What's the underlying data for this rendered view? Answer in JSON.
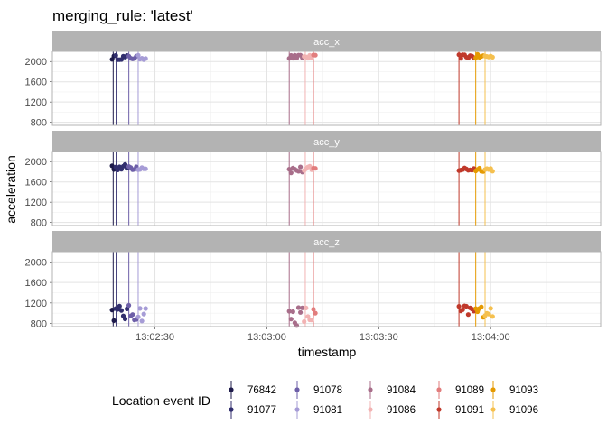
{
  "chart_data": {
    "type": "scatter",
    "title": "merging_rule: 'latest'",
    "xlabel": "timestamp",
    "ylabel": "acceleration",
    "x_ticks": [
      "13:02:30",
      "13:03:00",
      "13:03:30",
      "13:04:00"
    ],
    "x_tick_seconds": [
      30,
      60,
      90,
      120
    ],
    "xlim_seconds": [
      2.5,
      149.5
    ],
    "ylim": [
      740,
      2200
    ],
    "y_ticks": [
      800,
      1200,
      1600,
      2000
    ],
    "grid": true,
    "panels": [
      {
        "name": "acc_x",
        "clusters": [
          {
            "start": 18.5,
            "end": 27.5,
            "center": 2080,
            "spread": 45
          },
          {
            "start": 66.0,
            "end": 73.0,
            "center": 2090,
            "spread": 40
          },
          {
            "start": 111.5,
            "end": 120.5,
            "center": 2100,
            "spread": 40
          }
        ]
      },
      {
        "name": "acc_y",
        "clusters": [
          {
            "start": 18.5,
            "end": 27.5,
            "center": 1890,
            "spread": 60
          },
          {
            "start": 66.0,
            "end": 73.0,
            "center": 1840,
            "spread": 70
          },
          {
            "start": 111.5,
            "end": 120.5,
            "center": 1850,
            "spread": 45
          }
        ]
      },
      {
        "name": "acc_z",
        "clusters": [
          {
            "start": 18.5,
            "end": 27.5,
            "center": 1000,
            "spread": 160
          },
          {
            "start": 66.0,
            "end": 73.0,
            "center": 950,
            "spread": 200
          },
          {
            "start": 111.5,
            "end": 120.5,
            "center": 1040,
            "spread": 120
          }
        ]
      }
    ],
    "event_lines_seconds": [
      {
        "id": "76842",
        "t": 18.8
      },
      {
        "id": "91077",
        "t": 19.6
      },
      {
        "id": "91078",
        "t": 23.0
      },
      {
        "id": "91081",
        "t": 25.5
      },
      {
        "id": "91084",
        "t": 66.0
      },
      {
        "id": "91086",
        "t": 70.3
      },
      {
        "id": "91089",
        "t": 72.5
      },
      {
        "id": "91091",
        "t": 111.5
      },
      {
        "id": "91093",
        "t": 116.0
      },
      {
        "id": "91096",
        "t": 118.5
      }
    ],
    "legend": {
      "title": "Location event ID",
      "position": "bottom",
      "entries": [
        {
          "id": "76842",
          "color": "#1e1b4b"
        },
        {
          "id": "91077",
          "color": "#312e6e"
        },
        {
          "id": "91078",
          "color": "#6d5fa8"
        },
        {
          "id": "91081",
          "color": "#a69cd6"
        },
        {
          "id": "91084",
          "color": "#a86e8a"
        },
        {
          "id": "91086",
          "color": "#f2b3b3"
        },
        {
          "id": "91089",
          "color": "#e27d7d"
        },
        {
          "id": "91091",
          "color": "#c0392b"
        },
        {
          "id": "91093",
          "color": "#e59a00"
        },
        {
          "id": "91096",
          "color": "#f5c04f"
        }
      ]
    }
  }
}
